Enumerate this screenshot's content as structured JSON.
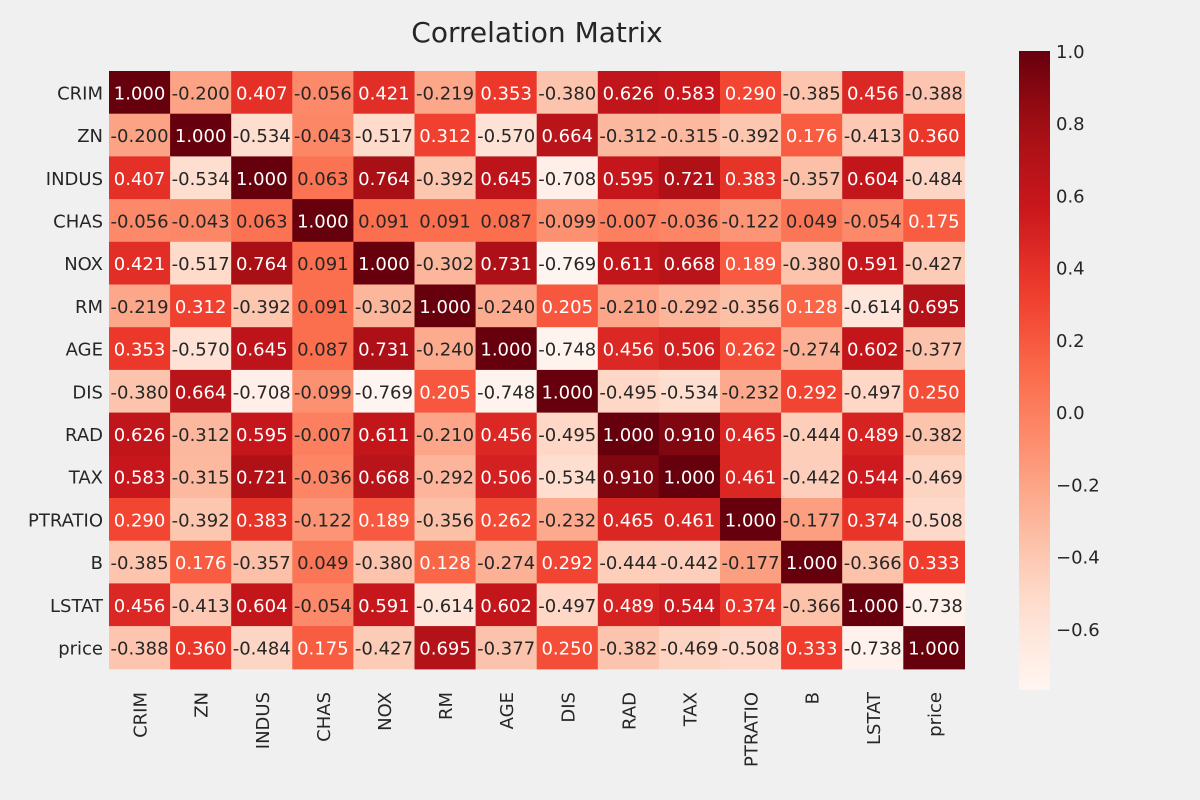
{
  "chart_data": {
    "type": "heatmap",
    "title": "Correlation Matrix",
    "xlabel": "",
    "ylabel": "",
    "labels": [
      "CRIM",
      "ZN",
      "INDUS",
      "CHAS",
      "NOX",
      "RM",
      "AGE",
      "DIS",
      "RAD",
      "TAX",
      "PTRATIO",
      "B",
      "LSTAT",
      "price"
    ],
    "values": [
      [
        1.0,
        -0.2,
        0.407,
        -0.056,
        0.421,
        -0.219,
        0.353,
        -0.38,
        0.626,
        0.583,
        0.29,
        -0.385,
        0.456,
        -0.388
      ],
      [
        -0.2,
        1.0,
        -0.534,
        -0.043,
        -0.517,
        0.312,
        -0.57,
        0.664,
        -0.312,
        -0.315,
        -0.392,
        0.176,
        -0.413,
        0.36
      ],
      [
        0.407,
        -0.534,
        1.0,
        0.063,
        0.764,
        -0.392,
        0.645,
        -0.708,
        0.595,
        0.721,
        0.383,
        -0.357,
        0.604,
        -0.484
      ],
      [
        -0.056,
        -0.043,
        0.063,
        1.0,
        0.091,
        0.091,
        0.087,
        -0.099,
        -0.007,
        -0.036,
        -0.122,
        0.049,
        -0.054,
        0.175
      ],
      [
        0.421,
        -0.517,
        0.764,
        0.091,
        1.0,
        -0.302,
        0.731,
        -0.769,
        0.611,
        0.668,
        0.189,
        -0.38,
        0.591,
        -0.427
      ],
      [
        -0.219,
        0.312,
        -0.392,
        0.091,
        -0.302,
        1.0,
        -0.24,
        0.205,
        -0.21,
        -0.292,
        -0.356,
        0.128,
        -0.614,
        0.695
      ],
      [
        0.353,
        -0.57,
        0.645,
        0.087,
        0.731,
        -0.24,
        1.0,
        -0.748,
        0.456,
        0.506,
        0.262,
        -0.274,
        0.602,
        -0.377
      ],
      [
        -0.38,
        0.664,
        -0.708,
        -0.099,
        -0.769,
        0.205,
        -0.748,
        1.0,
        -0.495,
        -0.534,
        -0.232,
        0.292,
        -0.497,
        0.25
      ],
      [
        0.626,
        -0.312,
        0.595,
        -0.007,
        0.611,
        -0.21,
        0.456,
        -0.495,
        1.0,
        0.91,
        0.465,
        -0.444,
        0.489,
        -0.382
      ],
      [
        0.583,
        -0.315,
        0.721,
        -0.036,
        0.668,
        -0.292,
        0.506,
        -0.534,
        0.91,
        1.0,
        0.461,
        -0.442,
        0.544,
        -0.469
      ],
      [
        0.29,
        -0.392,
        0.383,
        -0.122,
        0.189,
        -0.356,
        0.262,
        -0.232,
        0.465,
        0.461,
        1.0,
        -0.177,
        0.374,
        -0.508
      ],
      [
        -0.385,
        0.176,
        -0.357,
        0.049,
        -0.38,
        0.128,
        -0.274,
        0.292,
        -0.444,
        -0.442,
        -0.177,
        1.0,
        -0.366,
        0.333
      ],
      [
        0.456,
        -0.413,
        0.604,
        -0.054,
        0.591,
        -0.614,
        0.602,
        -0.497,
        0.489,
        0.544,
        0.374,
        -0.366,
        1.0,
        -0.738
      ],
      [
        -0.388,
        0.36,
        -0.484,
        0.175,
        -0.427,
        0.695,
        -0.377,
        0.25,
        -0.382,
        -0.469,
        -0.508,
        0.333,
        -0.738,
        1.0
      ]
    ],
    "value_format": "3 decimals",
    "colormap": "Reds",
    "colorbar": {
      "min": -0.769,
      "max": 1.0,
      "ticks": [
        -0.6,
        -0.4,
        -0.2,
        0.0,
        0.2,
        0.4,
        0.6,
        0.8,
        1.0
      ],
      "tick_labels": [
        "−0.6",
        "−0.4",
        "−0.2",
        "0.0",
        "0.2",
        "0.4",
        "0.6",
        "0.8",
        "1.0"
      ]
    },
    "colors": {
      "background": "#f0f0f0",
      "text_dark": "#262626",
      "text_light": "#ffffff"
    },
    "annotated": true,
    "grid": false
  }
}
